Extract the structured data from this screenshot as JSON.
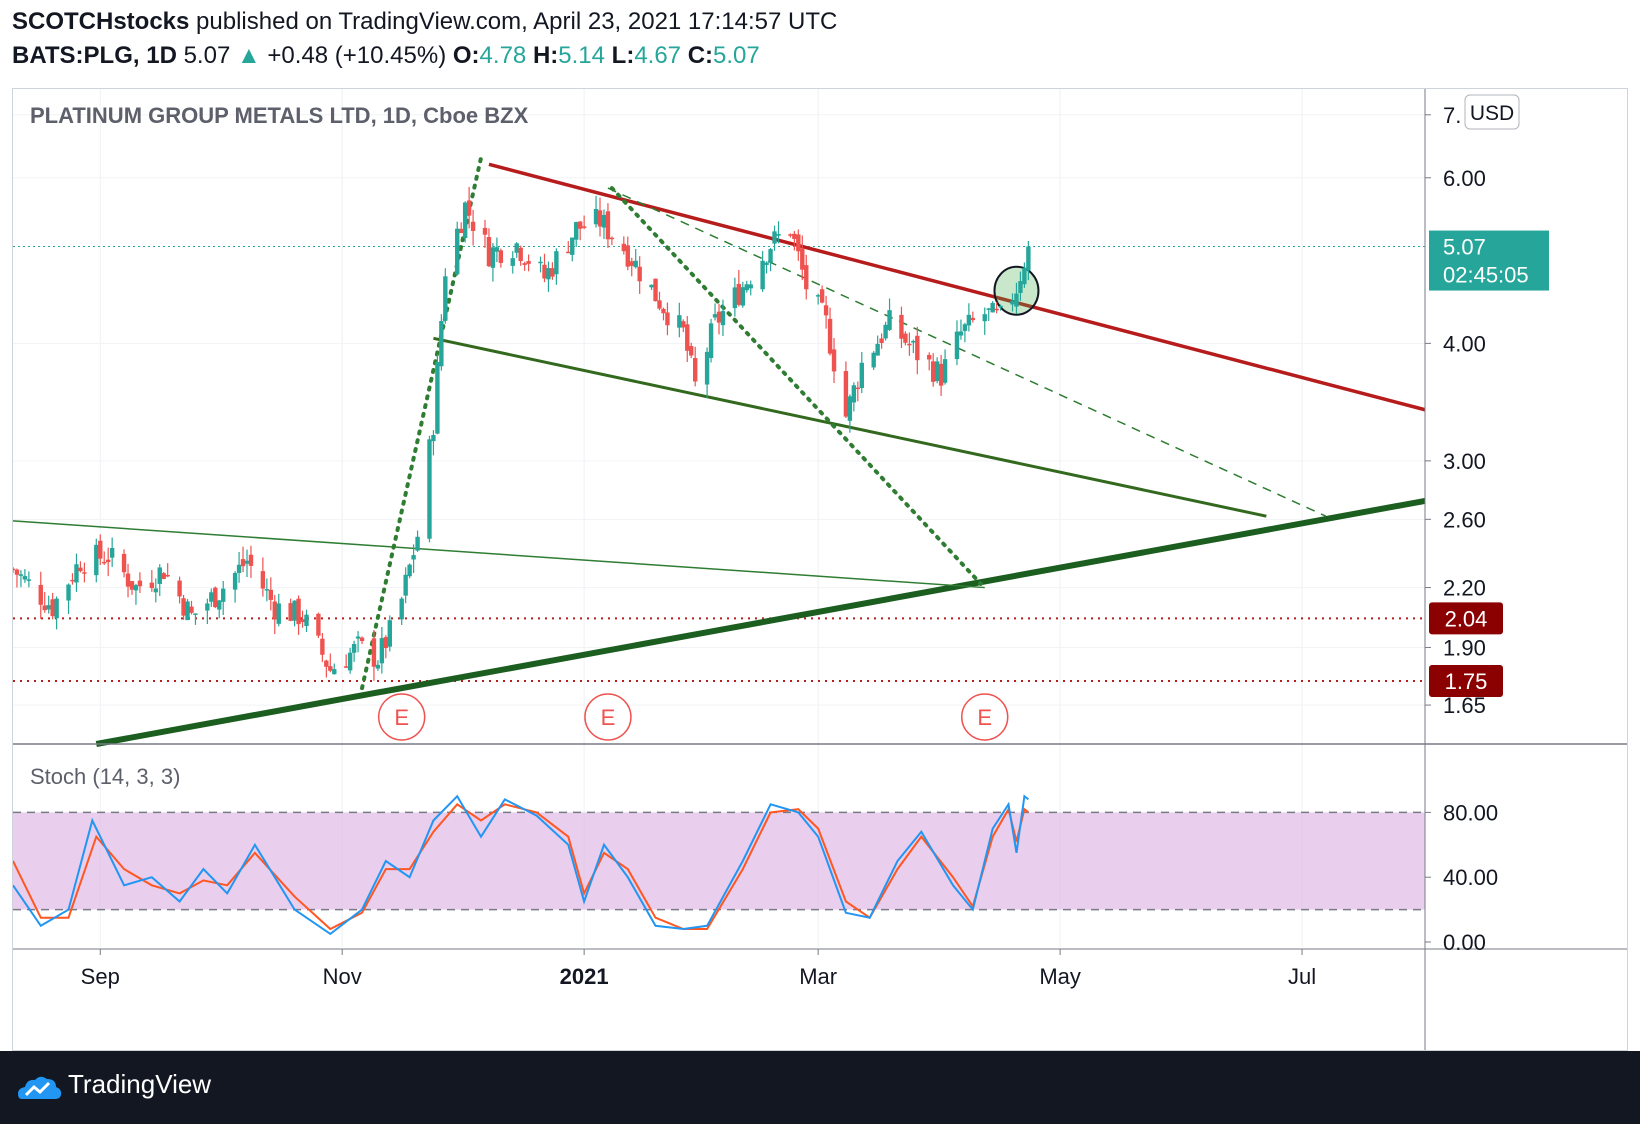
{
  "header": {
    "publisher": "SCOTCHstocks",
    "published_text": "published on TradingView.com, April 23, 2021 17:14:57 UTC",
    "symbol": "BATS:PLG, 1D",
    "last": "5.07",
    "change": "+0.48 (+10.45%)",
    "o_label": "O:",
    "o": "4.78",
    "h_label": "H:",
    "h": "5.14",
    "l_label": "L:",
    "l": "4.67",
    "c_label": "C:",
    "c": "5.07"
  },
  "footer": {
    "brand": "TradingView"
  },
  "colors": {
    "up": "#26a69a",
    "down": "#ef5350",
    "channel_top": "#b71c1c",
    "channel_bottom": "#33691e",
    "stoch_k": "#2196f3",
    "stoch_d": "#ff5722",
    "stoch_band": "#e1bee7"
  },
  "chart_data": {
    "type": "candlestick",
    "title": "PLATINUM GROUP METALS LTD, 1D, Cboe BZX",
    "currency": "USD",
    "y_scale": "log",
    "ylim": [
      1.5,
      7.1
    ],
    "y_ticks": [
      "7.",
      "6.00",
      "4.00",
      "3.00",
      "2.60",
      "2.20",
      "1.90",
      "1.65"
    ],
    "x_ticks": [
      "Sep",
      "Nov",
      "2021",
      "Mar",
      "May",
      "Jul"
    ],
    "x_range": [
      "2020-08-10",
      "2021-08-01"
    ],
    "price_label": {
      "value": "5.07",
      "countdown": "02:45:05"
    },
    "horizontal_levels": [
      {
        "value": "2.04",
        "style": "dotted-red"
      },
      {
        "value": "1.75",
        "style": "dotted-red"
      }
    ],
    "earnings_markers": [
      "E",
      "E",
      "E"
    ],
    "earnings_dates": [
      "2020-11-16",
      "2021-01-07",
      "2021-04-12"
    ],
    "trendlines": [
      {
        "name": "falling channel top",
        "from": [
          "2020-12-08",
          6.2
        ],
        "to": [
          "2021-08-01",
          3.4
        ],
        "color": "#b71c1c"
      },
      {
        "name": "falling channel bottom",
        "from": [
          "2020-11-24",
          4.05
        ],
        "to": [
          "2021-06-22",
          2.62
        ],
        "color": "#33691e"
      },
      {
        "name": "long term support",
        "from": [
          "2020-08-31",
          1.5
        ],
        "to": [
          "2021-08-01",
          2.72
        ],
        "color": "#1b5e20"
      },
      {
        "name": "flat line",
        "from": [
          "2020-08-10",
          2.59
        ],
        "to": [
          "2021-04-12",
          2.2
        ],
        "color": "#2e7d32"
      },
      {
        "name": "dashed trend",
        "from": [
          "2021-01-07",
          5.85
        ],
        "to": [
          "2021-07-07",
          2.62
        ],
        "color": "#2e7d32"
      },
      {
        "name": "dotted rally",
        "from": [
          "2020-11-06",
          1.72
        ],
        "to": [
          "2020-12-06",
          6.3
        ],
        "color": "#2e7d32"
      },
      {
        "name": "dotted decline",
        "from": [
          "2021-01-08",
          5.85
        ],
        "to": [
          "2021-04-11",
          2.22
        ],
        "color": "#2e7d32"
      }
    ],
    "close_path": [
      [
        "2020-08-10",
        2.3
      ],
      [
        "2020-08-20",
        2.1
      ],
      [
        "2020-08-27",
        2.35
      ],
      [
        "2020-09-03",
        2.38
      ],
      [
        "2020-09-10",
        2.2
      ],
      [
        "2020-09-17",
        2.3
      ],
      [
        "2020-09-24",
        2.05
      ],
      [
        "2020-10-01",
        2.18
      ],
      [
        "2020-10-08",
        2.35
      ],
      [
        "2020-10-15",
        2.1
      ],
      [
        "2020-10-22",
        2.05
      ],
      [
        "2020-10-29",
        1.8
      ],
      [
        "2020-11-05",
        1.9
      ],
      [
        "2020-11-10",
        1.85
      ],
      [
        "2020-11-15",
        2.05
      ],
      [
        "2020-11-20",
        2.5
      ],
      [
        "2020-11-24",
        3.3
      ],
      [
        "2020-11-27",
        4.8
      ],
      [
        "2020-12-02",
        5.6
      ],
      [
        "2020-12-08",
        5.0
      ],
      [
        "2020-12-15",
        5.1
      ],
      [
        "2020-12-22",
        4.7
      ],
      [
        "2020-12-30",
        5.3
      ],
      [
        "2021-01-05",
        5.4
      ],
      [
        "2021-01-12",
        5.0
      ],
      [
        "2021-01-19",
        4.5
      ],
      [
        "2021-01-26",
        4.1
      ],
      [
        "2021-01-29",
        3.6
      ],
      [
        "2021-02-03",
        4.2
      ],
      [
        "2021-02-10",
        4.6
      ],
      [
        "2021-02-17",
        5.1
      ],
      [
        "2021-02-22",
        5.3
      ],
      [
        "2021-02-26",
        4.6
      ],
      [
        "2021-03-03",
        4.2
      ],
      [
        "2021-03-08",
        3.35
      ],
      [
        "2021-03-12",
        3.8
      ],
      [
        "2021-03-19",
        4.2
      ],
      [
        "2021-03-26",
        3.9
      ],
      [
        "2021-04-01",
        3.7
      ],
      [
        "2021-04-06",
        4.1
      ],
      [
        "2021-04-12",
        4.3
      ],
      [
        "2021-04-16",
        4.25
      ],
      [
        "2021-04-20",
        4.59
      ],
      [
        "2021-04-23",
        5.07
      ]
    ],
    "stoch": {
      "name": "Stoch (14, 3, 3)",
      "ylim": [
        0,
        100
      ],
      "y_ticks": [
        "80.00",
        "40.00",
        "0.00"
      ],
      "band": [
        20,
        80
      ],
      "k": [
        [
          "2020-08-10",
          35
        ],
        [
          "2020-08-17",
          10
        ],
        [
          "2020-08-24",
          20
        ],
        [
          "2020-08-30",
          75
        ],
        [
          "2020-09-07",
          35
        ],
        [
          "2020-09-14",
          40
        ],
        [
          "2020-09-21",
          25
        ],
        [
          "2020-09-27",
          45
        ],
        [
          "2020-10-03",
          30
        ],
        [
          "2020-10-10",
          60
        ],
        [
          "2020-10-20",
          20
        ],
        [
          "2020-10-29",
          5
        ],
        [
          "2020-11-06",
          20
        ],
        [
          "2020-11-12",
          50
        ],
        [
          "2020-11-18",
          40
        ],
        [
          "2020-11-24",
          75
        ],
        [
          "2020-11-30",
          90
        ],
        [
          "2020-12-06",
          65
        ],
        [
          "2020-12-12",
          88
        ],
        [
          "2020-12-20",
          78
        ],
        [
          "2020-12-28",
          60
        ],
        [
          "2021-01-01",
          25
        ],
        [
          "2021-01-06",
          60
        ],
        [
          "2021-01-12",
          40
        ],
        [
          "2021-01-19",
          10
        ],
        [
          "2021-01-26",
          8
        ],
        [
          "2021-02-01",
          10
        ],
        [
          "2021-02-10",
          50
        ],
        [
          "2021-02-17",
          85
        ],
        [
          "2021-02-24",
          80
        ],
        [
          "2021-03-01",
          65
        ],
        [
          "2021-03-08",
          18
        ],
        [
          "2021-03-14",
          15
        ],
        [
          "2021-03-21",
          50
        ],
        [
          "2021-03-27",
          68
        ],
        [
          "2021-04-04",
          35
        ],
        [
          "2021-04-09",
          20
        ],
        [
          "2021-04-14",
          70
        ],
        [
          "2021-04-18",
          85
        ],
        [
          "2021-04-20",
          55
        ],
        [
          "2021-04-22",
          90
        ],
        [
          "2021-04-23",
          88
        ]
      ],
      "d": [
        [
          "2020-08-10",
          50
        ],
        [
          "2020-08-17",
          15
        ],
        [
          "2020-08-24",
          15
        ],
        [
          "2020-08-31",
          65
        ],
        [
          "2020-09-07",
          45
        ],
        [
          "2020-09-14",
          35
        ],
        [
          "2020-09-21",
          30
        ],
        [
          "2020-09-27",
          38
        ],
        [
          "2020-10-03",
          35
        ],
        [
          "2020-10-10",
          55
        ],
        [
          "2020-10-20",
          28
        ],
        [
          "2020-10-29",
          8
        ],
        [
          "2020-11-06",
          18
        ],
        [
          "2020-11-12",
          45
        ],
        [
          "2020-11-18",
          45
        ],
        [
          "2020-11-24",
          68
        ],
        [
          "2020-11-30",
          85
        ],
        [
          "2020-12-06",
          75
        ],
        [
          "2020-12-12",
          85
        ],
        [
          "2020-12-20",
          80
        ],
        [
          "2020-12-28",
          65
        ],
        [
          "2021-01-01",
          30
        ],
        [
          "2021-01-06",
          55
        ],
        [
          "2021-01-12",
          45
        ],
        [
          "2021-01-19",
          15
        ],
        [
          "2021-01-26",
          8
        ],
        [
          "2021-02-01",
          8
        ],
        [
          "2021-02-10",
          45
        ],
        [
          "2021-02-17",
          80
        ],
        [
          "2021-02-24",
          82
        ],
        [
          "2021-03-01",
          70
        ],
        [
          "2021-03-08",
          25
        ],
        [
          "2021-03-14",
          15
        ],
        [
          "2021-03-21",
          45
        ],
        [
          "2021-03-27",
          65
        ],
        [
          "2021-04-04",
          40
        ],
        [
          "2021-04-09",
          22
        ],
        [
          "2021-04-14",
          65
        ],
        [
          "2021-04-18",
          82
        ],
        [
          "2021-04-20",
          62
        ],
        [
          "2021-04-22",
          82
        ],
        [
          "2021-04-23",
          80
        ]
      ]
    }
  }
}
